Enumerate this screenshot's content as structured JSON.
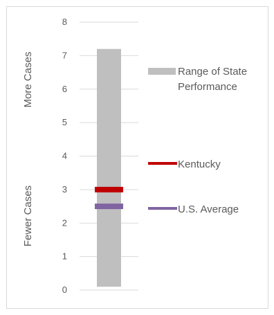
{
  "chart_data": {
    "type": "bar",
    "ylim": [
      0,
      8
    ],
    "yticks": [
      "0",
      "1",
      "2",
      "3",
      "4",
      "5",
      "6",
      "7",
      "8"
    ],
    "grid": true,
    "range": {
      "name": "Range of State Performance",
      "low": 0.1,
      "high": 7.2
    },
    "markers": [
      {
        "name": "Kentucky",
        "value": 3.0
      },
      {
        "name": "U.S. Average",
        "value": 2.5
      }
    ],
    "side_labels": {
      "top": "More Cases",
      "bottom": "Fewer Cases"
    },
    "legend": {
      "range_lines": [
        "Range of State",
        "Performance"
      ],
      "kentucky": "Kentucky",
      "us_average": "U.S. Average"
    },
    "colors": {
      "range": "#bfbfbf",
      "kentucky": "#c00000",
      "us_average": "#8064a2",
      "grid": "#d9d9d9",
      "text": "#595959"
    }
  }
}
